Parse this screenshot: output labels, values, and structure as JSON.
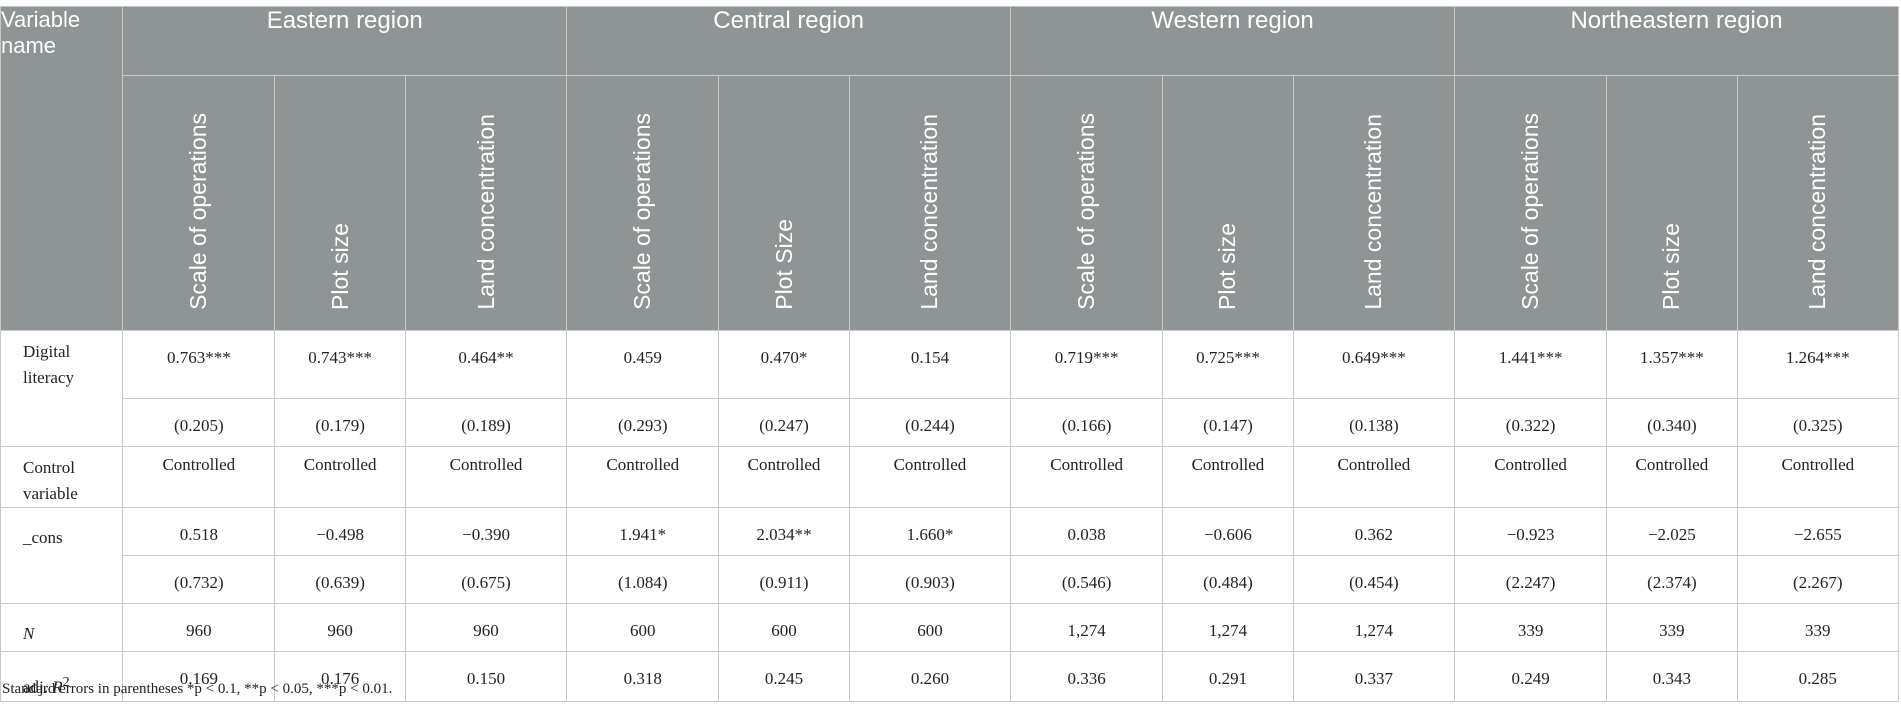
{
  "header": {
    "variable_name": "Variable name",
    "regions": [
      "Eastern region",
      "Central region",
      "Western region",
      "Northeastern region"
    ],
    "subheaders": [
      "Scale of operations",
      "Plot size",
      "Land concentration",
      "Scale of operations",
      "Plot Size",
      "Land concentration",
      "Scale of operations",
      "Plot size",
      "Land concentration",
      "Scale of operations",
      "Plot size",
      "Land concentration"
    ]
  },
  "rows": {
    "digital_literacy": {
      "label": "Digital literacy",
      "coef": [
        "0.763***",
        "0.743***",
        "0.464**",
        "0.459",
        "0.470*",
        "0.154",
        "0.719***",
        "0.725***",
        "0.649***",
        "1.441***",
        "1.357***",
        "1.264***"
      ],
      "se": [
        "(0.205)",
        "(0.179)",
        "(0.189)",
        "(0.293)",
        "(0.247)",
        "(0.244)",
        "(0.166)",
        "(0.147)",
        "(0.138)",
        "(0.322)",
        "(0.340)",
        "(0.325)"
      ]
    },
    "control": {
      "label": "Control variable",
      "values": [
        "Controlled",
        "Controlled",
        "Controlled",
        "Controlled",
        "Controlled",
        "Controlled",
        "Controlled",
        "Controlled",
        "Controlled",
        "Controlled",
        "Controlled",
        "Controlled"
      ]
    },
    "cons": {
      "label": "_cons",
      "coef": [
        "0.518",
        "−0.498",
        "−0.390",
        "1.941*",
        "2.034**",
        "1.660*",
        "0.038",
        "−0.606",
        "0.362",
        "−0.923",
        "−2.025",
        "−2.655"
      ],
      "se": [
        "(0.732)",
        "(0.639)",
        "(0.675)",
        "(1.084)",
        "(0.911)",
        "(0.903)",
        "(0.546)",
        "(0.484)",
        "(0.454)",
        "(2.247)",
        "(2.374)",
        "(2.267)"
      ]
    },
    "n": {
      "label": "N",
      "values": [
        "960",
        "960",
        "960",
        "600",
        "600",
        "600",
        "1,274",
        "1,274",
        "1,274",
        "339",
        "339",
        "339"
      ]
    },
    "r2": {
      "label_prefix": "adj. ",
      "label_var": "R",
      "label_sup": "2",
      "values": [
        "0.169",
        "0.176",
        "0.150",
        "0.318",
        "0.245",
        "0.260",
        "0.336",
        "0.291",
        "0.337",
        "0.249",
        "0.343",
        "0.285"
      ]
    }
  },
  "footnote": "Standard errors in parentheses *p < 0.1, **p < 0.05, ***p < 0.01."
}
